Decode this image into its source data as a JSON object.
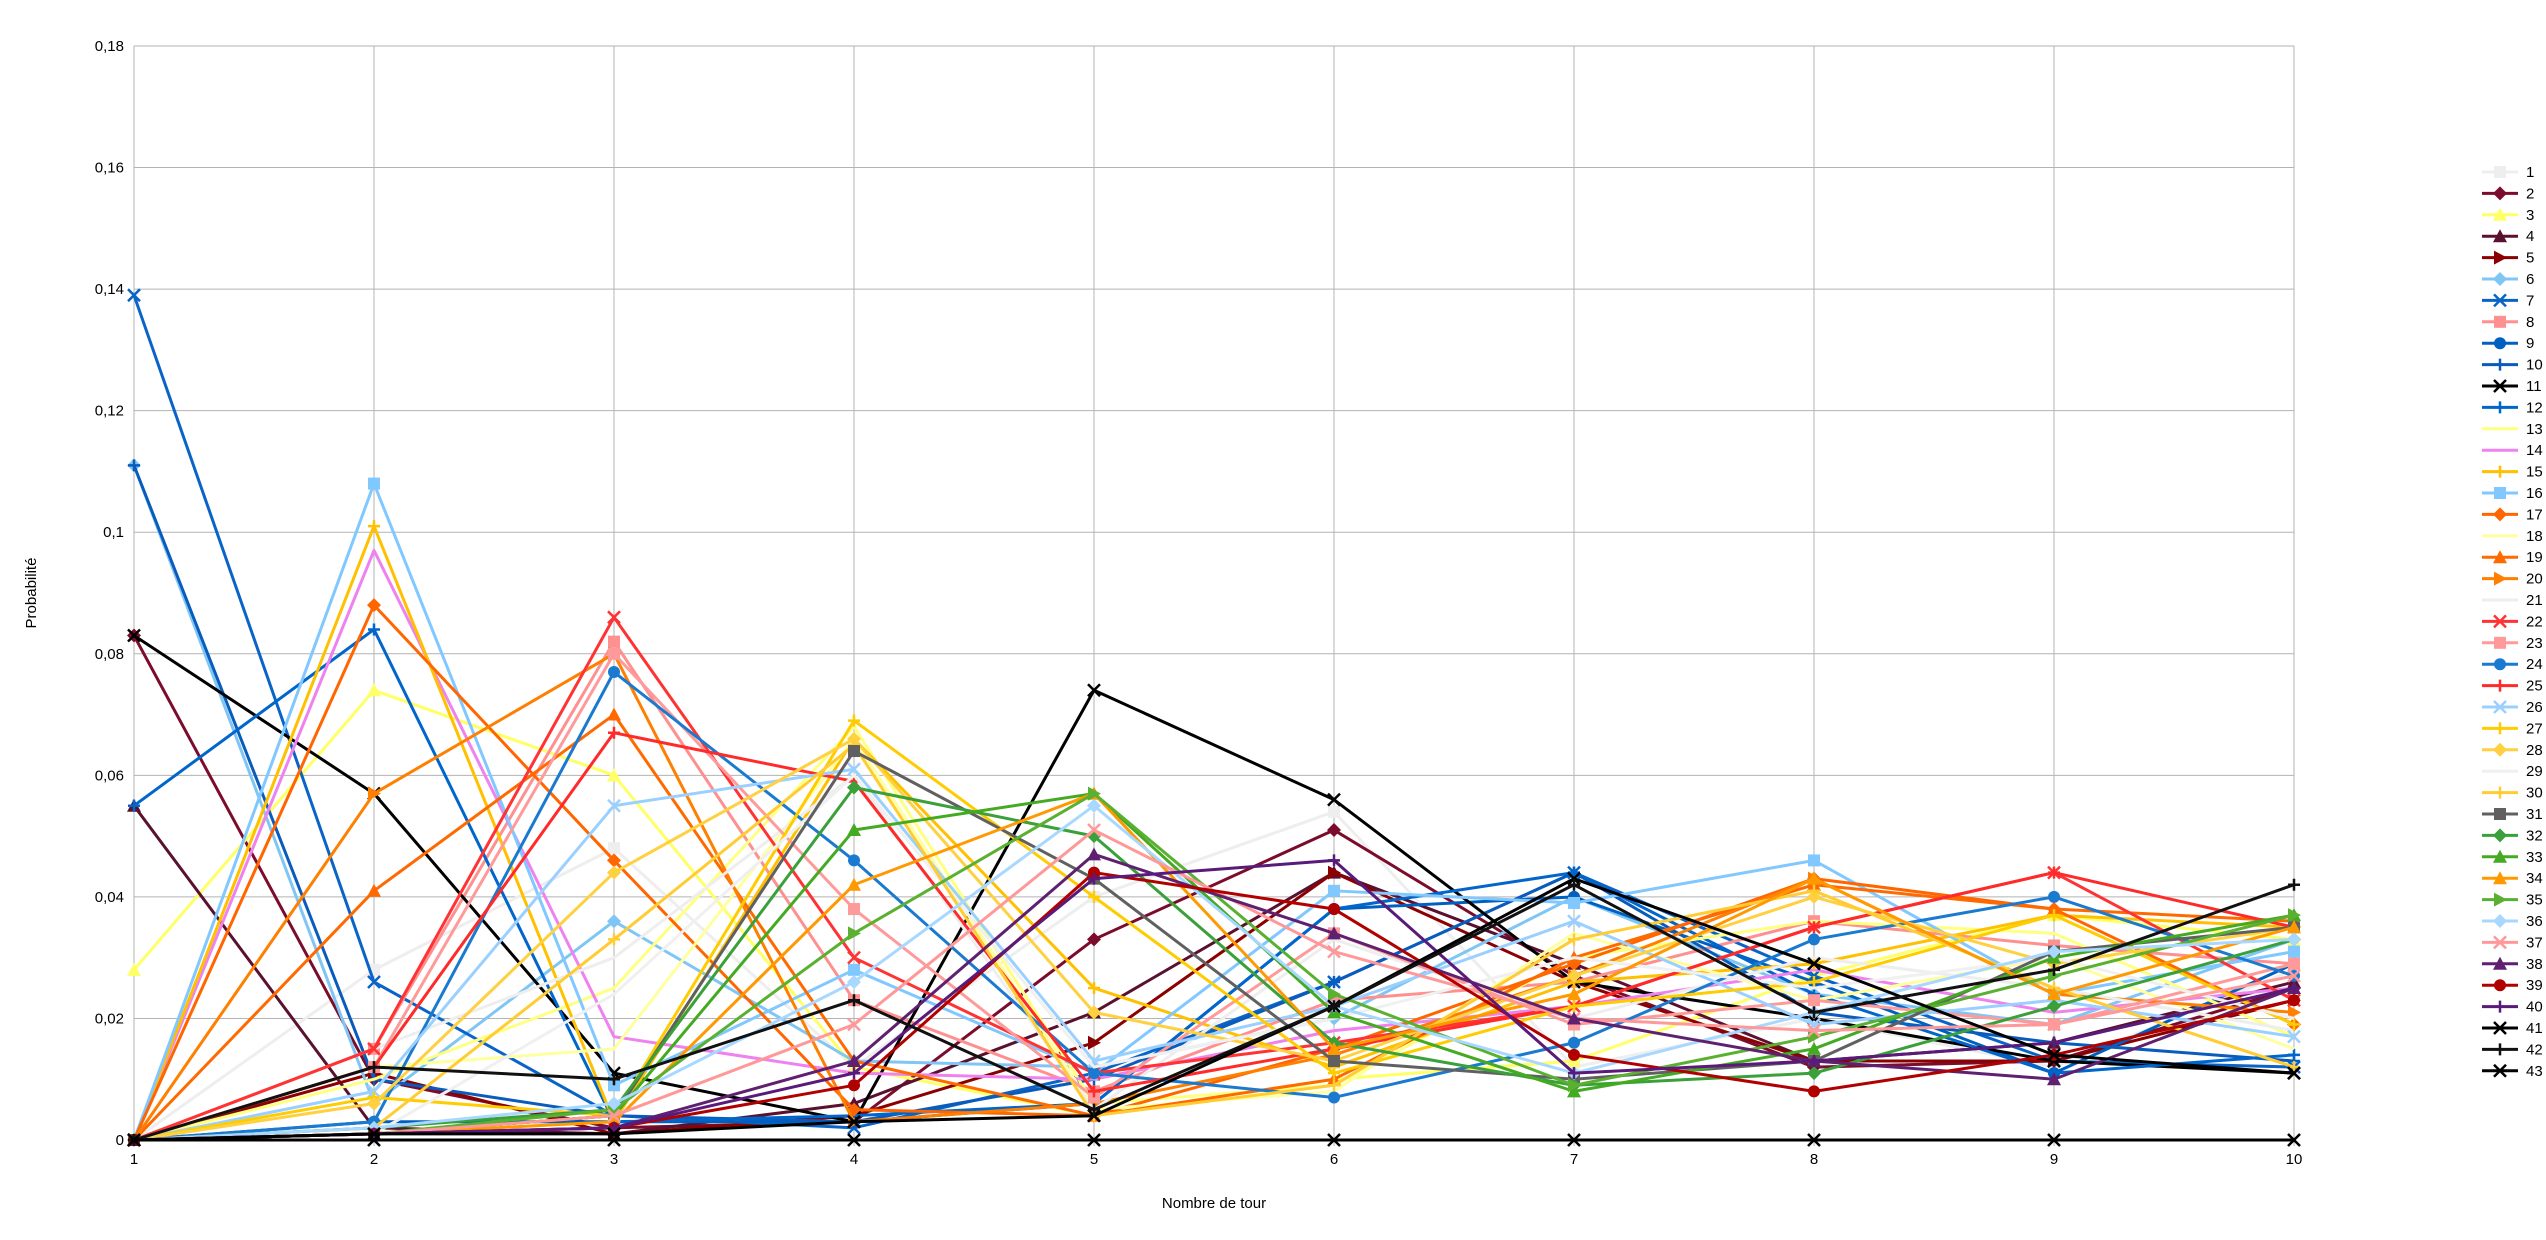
{
  "chart_data": {
    "type": "line",
    "title": "",
    "xlabel": "Nombre de tour",
    "ylabel": "Probabilité",
    "x": [
      1,
      2,
      3,
      4,
      5,
      6,
      7,
      8,
      9,
      10
    ],
    "x_tick_labels": [
      "1",
      "2",
      "3",
      "4",
      "5",
      "6",
      "7",
      "8",
      "9",
      "10"
    ],
    "ylim": [
      0,
      0.18
    ],
    "y_ticks": [
      0,
      0.02,
      0.04,
      0.06,
      0.08,
      0.1,
      0.12,
      0.14,
      0.16,
      0.18
    ],
    "y_tick_labels": [
      "0",
      "0,02",
      "0,04",
      "0,06",
      "0,08",
      "0,1",
      "0,12",
      "0,14",
      "0,16",
      "0,18"
    ],
    "grid": true,
    "legend_position": "right",
    "series": [
      {
        "name": "1",
        "color": "#eeeeee",
        "marker": "square",
        "values": [
          0,
          0.028,
          0.048,
          0.012,
          0.04,
          0.054,
          0.012,
          0.02,
          0.012,
          0.028
        ]
      },
      {
        "name": "2",
        "color": "#7b0c2c",
        "marker": "diamond",
        "values": [
          0.083,
          0.01,
          0.002,
          0.003,
          0.033,
          0.051,
          0.027,
          0.012,
          0.013,
          0.025
        ]
      },
      {
        "name": "3",
        "color": "#ffff66",
        "marker": "triangle",
        "values": [
          0.028,
          0.074,
          0.06,
          0.012,
          0.004,
          0.01,
          0.013,
          0.027,
          0.037,
          0.033
        ]
      },
      {
        "name": "4",
        "color": "#5a1130",
        "marker": "triangle",
        "values": [
          0.055,
          0.002,
          0.001,
          0.006,
          0.021,
          0.044,
          0.029,
          0.013,
          0.016,
          0.026
        ]
      },
      {
        "name": "5",
        "color": "#8b0000",
        "marker": "triangle-right",
        "values": [
          0,
          0.011,
          0.001,
          0.004,
          0.016,
          0.044,
          0.026,
          0.013,
          0.013,
          0.023
        ]
      },
      {
        "name": "6",
        "color": "#7fc6f5",
        "marker": "diamond",
        "values": [
          0.111,
          0.006,
          0.036,
          0.013,
          0.012,
          0.02,
          0.04,
          0.024,
          0.019,
          0.033
        ]
      },
      {
        "name": "7",
        "color": "#0a64c8",
        "marker": "x",
        "values": [
          0.139,
          0.026,
          0.004,
          0.002,
          0.011,
          0.026,
          0.044,
          0.027,
          0.013,
          0.012
        ]
      },
      {
        "name": "8",
        "color": "#ff9090",
        "marker": "square",
        "values": [
          0,
          0.015,
          0.082,
          0.023,
          0.008,
          0.023,
          0.026,
          0.036,
          0.032,
          0.029
        ]
      },
      {
        "name": "9",
        "color": "#0060c0",
        "marker": "circle",
        "values": [
          0,
          0.003,
          0.003,
          0.003,
          0.006,
          0.038,
          0.04,
          0.026,
          0.011,
          0.029
        ]
      },
      {
        "name": "10",
        "color": "#0a5cbc",
        "marker": "plus",
        "values": [
          0.111,
          0.01,
          0.004,
          0.003,
          0.01,
          0.026,
          0.044,
          0.021,
          0.016,
          0.013
        ]
      },
      {
        "name": "11",
        "color": "#000000",
        "marker": "x",
        "values": [
          0.083,
          0.057,
          0.011,
          0.003,
          0.074,
          0.056,
          0.026,
          0.02,
          0.013,
          0.011
        ]
      },
      {
        "name": "12",
        "color": "#0066cc",
        "marker": "plus",
        "values": [
          0.055,
          0.084,
          0.003,
          0.004,
          0.006,
          0.038,
          0.044,
          0.024,
          0.011,
          0.014
        ]
      },
      {
        "name": "13",
        "color": "#ffff80",
        "marker": "none",
        "values": [
          0,
          0.01,
          0.025,
          0.068,
          0.006,
          0.009,
          0.03,
          0.036,
          0.034,
          0.017
        ]
      },
      {
        "name": "14",
        "color": "#ee82ee",
        "marker": "none",
        "values": [
          0,
          0.097,
          0.017,
          0.011,
          0.01,
          0.018,
          0.022,
          0.028,
          0.021,
          0.025
        ]
      },
      {
        "name": "15",
        "color": "#ffc000",
        "marker": "plus",
        "values": [
          0,
          0.101,
          0.003,
          0.066,
          0.025,
          0.012,
          0.026,
          0.029,
          0.037,
          0.035
        ]
      },
      {
        "name": "16",
        "color": "#80c8ff",
        "marker": "square",
        "values": [
          0,
          0.108,
          0.009,
          0.028,
          0.011,
          0.041,
          0.039,
          0.046,
          0.024,
          0.031
        ]
      },
      {
        "name": "17",
        "color": "#ff6600",
        "marker": "diamond",
        "values": [
          0,
          0.088,
          0.046,
          0.005,
          0.004,
          0.015,
          0.029,
          0.043,
          0.038,
          0.019
        ]
      },
      {
        "name": "18",
        "color": "#ffffa0",
        "marker": "none",
        "values": [
          0,
          0.012,
          0.015,
          0.066,
          0.005,
          0.008,
          0.034,
          0.023,
          0.03,
          0.015
        ]
      },
      {
        "name": "19",
        "color": "#ff6a00",
        "marker": "triangle",
        "values": [
          0,
          0.041,
          0.07,
          0.013,
          0.004,
          0.01,
          0.03,
          0.042,
          0.038,
          0.036
        ]
      },
      {
        "name": "20",
        "color": "#ff7f00",
        "marker": "triangle-right",
        "values": [
          0,
          0.057,
          0.08,
          0.003,
          0.006,
          0.014,
          0.027,
          0.043,
          0.024,
          0.021
        ]
      },
      {
        "name": "21",
        "color": "#eeeeee",
        "marker": "none",
        "values": [
          0,
          0.015,
          0.03,
          0.06,
          0.005,
          0.033,
          0.02,
          0.03,
          0.025,
          0.018
        ]
      },
      {
        "name": "22",
        "color": "#ff3333",
        "marker": "x",
        "values": [
          0,
          0.015,
          0.086,
          0.03,
          0.011,
          0.016,
          0.022,
          0.035,
          0.044,
          0.023
        ]
      },
      {
        "name": "23",
        "color": "#ff9a9a",
        "marker": "square",
        "values": [
          0,
          0.012,
          0.08,
          0.038,
          0.007,
          0.034,
          0.019,
          0.023,
          0.019,
          0.029
        ]
      },
      {
        "name": "24",
        "color": "#1a7ad0",
        "marker": "circle",
        "values": [
          0,
          0.003,
          0.077,
          0.046,
          0.011,
          0.007,
          0.016,
          0.033,
          0.04,
          0.027
        ]
      },
      {
        "name": "25",
        "color": "#ff2a2a",
        "marker": "plus",
        "values": [
          0,
          0.012,
          0.067,
          0.059,
          0.008,
          0.015,
          0.022,
          0.035,
          0.044,
          0.035
        ]
      },
      {
        "name": "26",
        "color": "#9ad0ff",
        "marker": "x",
        "values": [
          0,
          0.008,
          0.055,
          0.061,
          0.013,
          0.022,
          0.036,
          0.019,
          0.023,
          0.017
        ]
      },
      {
        "name": "27",
        "color": "#ffcc00",
        "marker": "plus",
        "values": [
          0,
          0.007,
          0.004,
          0.069,
          0.04,
          0.011,
          0.022,
          0.026,
          0.037,
          0.019
        ]
      },
      {
        "name": "28",
        "color": "#ffd040",
        "marker": "diamond",
        "values": [
          0,
          0.006,
          0.044,
          0.066,
          0.021,
          0.013,
          0.027,
          0.04,
          0.029,
          0.035
        ]
      },
      {
        "name": "29",
        "color": "#f0f0f0",
        "marker": "none",
        "values": [
          0,
          0.001,
          0.024,
          0.06,
          0.012,
          0.02,
          0.03,
          0.025,
          0.03,
          0.02
        ]
      },
      {
        "name": "30",
        "color": "#ffcc33",
        "marker": "plus",
        "values": [
          0,
          0.002,
          0.033,
          0.065,
          0.004,
          0.009,
          0.033,
          0.041,
          0.025,
          0.012
        ]
      },
      {
        "name": "31",
        "color": "#606060",
        "marker": "square",
        "values": [
          0,
          0.001,
          0.004,
          0.064,
          0.043,
          0.013,
          0.01,
          0.013,
          0.031,
          0.035
        ]
      },
      {
        "name": "32",
        "color": "#3aa03a",
        "marker": "diamond",
        "values": [
          0,
          0.002,
          0.005,
          0.058,
          0.05,
          0.016,
          0.009,
          0.011,
          0.022,
          0.033
        ]
      },
      {
        "name": "33",
        "color": "#44aa22",
        "marker": "triangle",
        "values": [
          0,
          0.001,
          0.004,
          0.051,
          0.057,
          0.021,
          0.008,
          0.015,
          0.03,
          0.037
        ]
      },
      {
        "name": "34",
        "color": "#ff9900",
        "marker": "triangle",
        "values": [
          0,
          0.001,
          0.003,
          0.042,
          0.057,
          0.015,
          0.024,
          0.043,
          0.024,
          0.035
        ]
      },
      {
        "name": "35",
        "color": "#5ab030",
        "marker": "triangle-right",
        "values": [
          0,
          0.001,
          0.005,
          0.034,
          0.057,
          0.024,
          0.009,
          0.017,
          0.027,
          0.037
        ]
      },
      {
        "name": "36",
        "color": "#a8d8ff",
        "marker": "diamond",
        "values": [
          0,
          0.002,
          0.006,
          0.026,
          0.055,
          0.022,
          0.011,
          0.021,
          0.031,
          0.033
        ]
      },
      {
        "name": "37",
        "color": "#ff9999",
        "marker": "x",
        "values": [
          0,
          0.001,
          0.004,
          0.019,
          0.051,
          0.031,
          0.02,
          0.018,
          0.019,
          0.027
        ]
      },
      {
        "name": "38",
        "color": "#602070",
        "marker": "triangle",
        "values": [
          0,
          0.001,
          0.002,
          0.013,
          0.047,
          0.034,
          0.02,
          0.013,
          0.01,
          0.025
        ]
      },
      {
        "name": "39",
        "color": "#b00000",
        "marker": "circle",
        "values": [
          0,
          0.001,
          0.002,
          0.009,
          0.044,
          0.038,
          0.014,
          0.008,
          0.014,
          0.023
        ]
      },
      {
        "name": "40",
        "color": "#5a1a7a",
        "marker": "plus",
        "values": [
          0,
          0.001,
          0.002,
          0.011,
          0.043,
          0.046,
          0.011,
          0.013,
          0.016,
          0.025
        ]
      },
      {
        "name": "41",
        "color": "#000000",
        "marker": "x",
        "values": [
          0,
          0.001,
          0.001,
          0.003,
          0.004,
          0.022,
          0.043,
          0.029,
          0.014,
          0.011
        ]
      },
      {
        "name": "42",
        "color": "#111111",
        "marker": "plus",
        "values": [
          0,
          0.012,
          0.01,
          0.023,
          0.005,
          0.022,
          0.042,
          0.021,
          0.028,
          0.042
        ]
      },
      {
        "name": "43",
        "color": "#000000",
        "marker": "x",
        "values": [
          0,
          0,
          0,
          0,
          0,
          0,
          0,
          0,
          0,
          0
        ]
      }
    ]
  }
}
